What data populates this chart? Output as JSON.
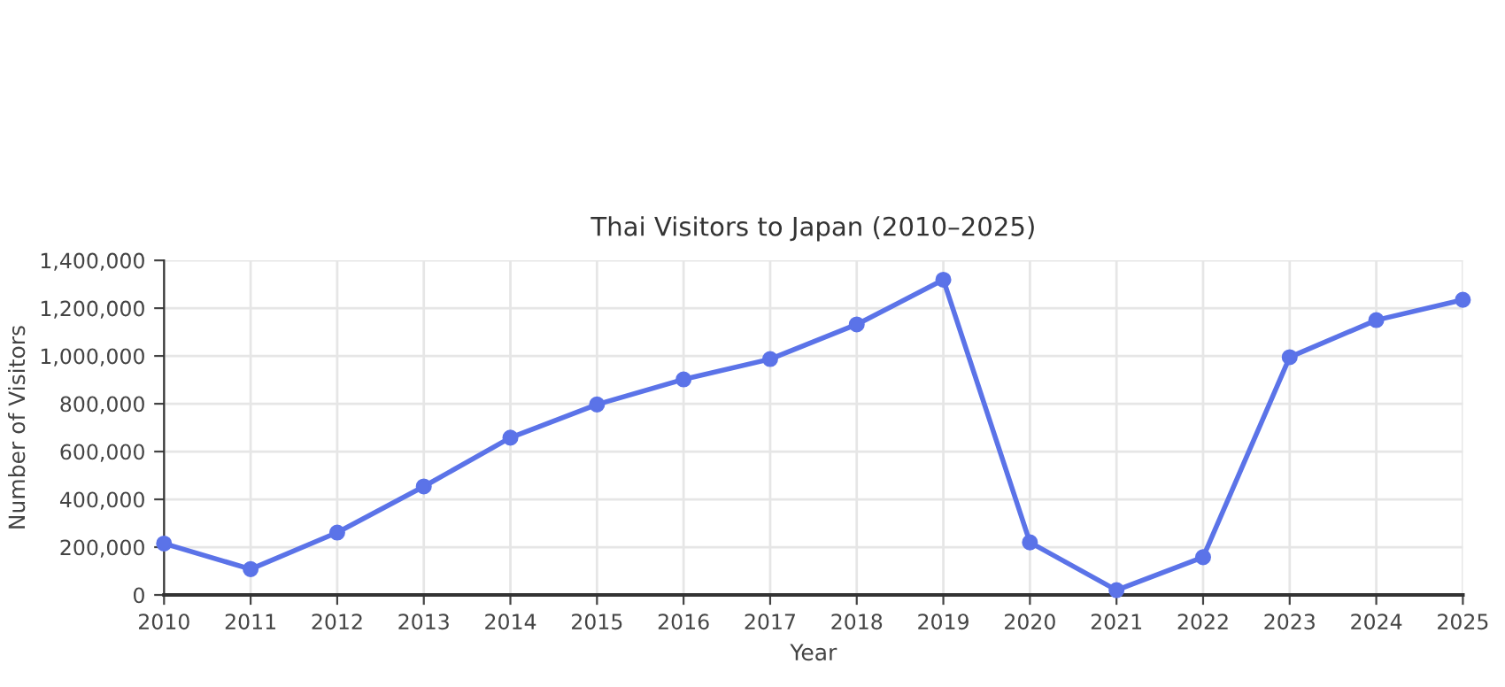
{
  "chart_data": {
    "type": "line",
    "title": "Thai Visitors to Japan (2010–2025)",
    "xlabel": "Year",
    "ylabel": "Number of Visitors",
    "categories": [
      "2010",
      "2011",
      "2012",
      "2013",
      "2014",
      "2015",
      "2016",
      "2017",
      "2018",
      "2019",
      "2020",
      "2021",
      "2022",
      "2023",
      "2024",
      "2025"
    ],
    "series": [
      {
        "color": "#5b73e8",
        "values": [
          215000,
          108000,
          261000,
          454000,
          658000,
          797000,
          902000,
          987000,
          1132000,
          1319000,
          220000,
          20000,
          158000,
          995000,
          1150000,
          1235000
        ]
      }
    ],
    "ylim": [
      0,
      1400000
    ],
    "yticks": [
      0,
      {
        "value": 200000,
        "label": "200,000"
      },
      {
        "value": 400000,
        "label": "400,000"
      },
      {
        "value": 600000,
        "label": "600,000"
      },
      {
        "value": 800000,
        "label": "800,000"
      },
      {
        "value": 1000000,
        "label": "1,000,000"
      },
      {
        "value": 1200000,
        "label": "1,200,000"
      },
      {
        "value": 1400000,
        "label": "1,400,000"
      }
    ],
    "grid": true,
    "marker": "circle",
    "line_style": "solid"
  }
}
